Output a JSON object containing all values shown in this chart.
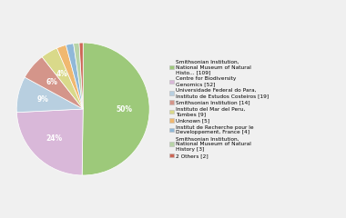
{
  "labels": [
    "Smithsonian Institution,\nNational Museum of Natural\nHisto... [109]",
    "Centre for Biodiversity\nGenomics [52]",
    "Universidade Federal do Para,\nInstituto de Estudos Costeiros [19]",
    "Smithsonian Institution [14]",
    "Instituto del Mar del Peru,\nTumbes [9]",
    "Unknown [5]",
    "Institut de Recherche pour le\nDeveloppement, France [4]",
    "Smithsonian Institution,\nNational Museum of Natural\nHistory [3]",
    "2 Others [2]"
  ],
  "values": [
    109,
    52,
    19,
    14,
    9,
    5,
    4,
    3,
    2
  ],
  "colors": [
    "#9dc97a",
    "#d9b8d9",
    "#b8cfe0",
    "#d4958a",
    "#d9d98a",
    "#f0b870",
    "#90b8d8",
    "#b8d4a8",
    "#cc6655"
  ],
  "background_color": "#f0f0f0",
  "pct_threshold": 4
}
